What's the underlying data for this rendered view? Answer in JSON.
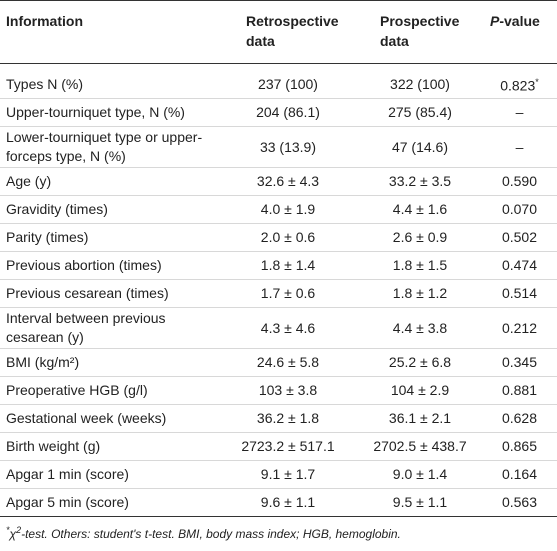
{
  "table": {
    "header": [
      "Information",
      "Retrospective data",
      "Prospective data",
      {
        "italic": "P",
        "rest": "-value"
      }
    ],
    "rows": [
      [
        "Types N (%)",
        "237 (100)",
        "322 (100)",
        {
          "value": "0.823",
          "note": "*"
        }
      ],
      [
        "Upper-tourniquet type, N (%)",
        "204 (86.1)",
        "275 (85.4)",
        "–"
      ],
      [
        "Lower-tourniquet type or upper-forceps type, N (%)",
        "33 (13.9)",
        "47 (14.6)",
        "–"
      ],
      [
        "Age (y)",
        "32.6 ± 4.3",
        "33.2 ± 3.5",
        "0.590"
      ],
      [
        "Gravidity (times)",
        "4.0 ± 1.9",
        "4.4 ± 1.6",
        "0.070"
      ],
      [
        "Parity (times)",
        "2.0 ± 0.6",
        "2.6 ± 0.9",
        "0.502"
      ],
      [
        "Previous abortion (times)",
        "1.8 ± 1.4",
        "1.8 ± 1.5",
        "0.474"
      ],
      [
        "Previous cesarean (times)",
        "1.7 ± 0.6",
        "1.8 ± 1.2",
        "0.514"
      ],
      [
        "Interval between previous cesarean (y)",
        "4.3 ± 4.6",
        "4.4 ± 3.8",
        "0.212"
      ],
      [
        "BMI (kg/m²)",
        "24.6 ± 5.8",
        "25.2 ± 6.8",
        "0.345"
      ],
      [
        "Preoperative HGB (g/l)",
        "103 ± 3.8",
        "104 ± 2.9",
        "0.881"
      ],
      [
        "Gestational week (weeks)",
        "36.2 ± 1.8",
        "36.1 ± 2.1",
        "0.628"
      ],
      [
        "Birth weight (g)",
        "2723.2 ± 517.1",
        "2702.5 ± 438.7",
        "0.865"
      ],
      [
        "Apgar 1 min (score)",
        "9.1 ± 1.7",
        "9.0 ± 1.4",
        "0.164"
      ],
      [
        "Apgar 5 min (score)",
        "9.6 ± 1.1",
        "9.5 ± 1.1",
        "0.563"
      ]
    ],
    "footnote": {
      "marker": "*",
      "chi": "χ",
      "sup": "2",
      "rest": "-test. Others: student's t-test. BMI, body mass index; HGB, hemoglobin."
    }
  }
}
